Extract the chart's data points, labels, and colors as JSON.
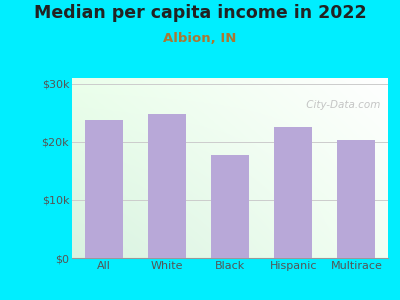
{
  "title": "Median per capita income in 2022",
  "subtitle": "Albion, IN",
  "categories": [
    "All",
    "White",
    "Black",
    "Hispanic",
    "Multirace"
  ],
  "values": [
    23800,
    24800,
    17800,
    22500,
    20300
  ],
  "bar_color": "#b8a8d8",
  "background_outer": "#00eeff",
  "background_inner_gradient_top": "#f0fff0",
  "background_inner_gradient_bottom": "#e8f5e8",
  "title_fontsize": 12.5,
  "subtitle_fontsize": 9.5,
  "tick_label_fontsize": 8,
  "tick_color": "#555555",
  "title_color": "#222222",
  "subtitle_color": "#aa7733",
  "ylim": [
    0,
    31000
  ],
  "yticks": [
    0,
    10000,
    20000,
    30000
  ],
  "watermark": " City-Data.com",
  "grid_color": "#cccccc"
}
